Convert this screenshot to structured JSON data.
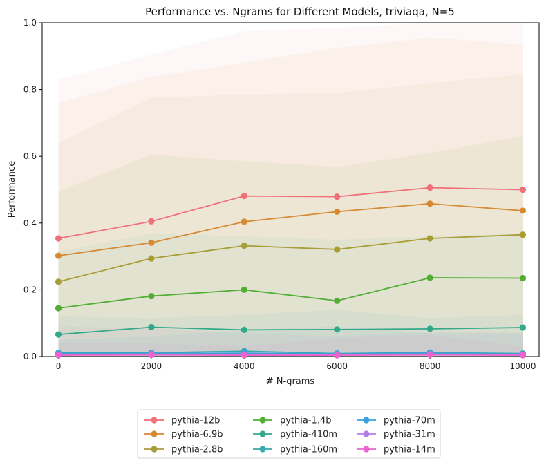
{
  "chart_data": {
    "type": "line",
    "title": "Performance vs. Ngrams for Different Models, triviaqa, N=5",
    "xlabel": "# N-grams",
    "ylabel": "Performance",
    "xlim": [
      -350,
      10350
    ],
    "ylim": [
      0,
      1.0
    ],
    "xticks": [
      0,
      2000,
      4000,
      6000,
      8000,
      10000
    ],
    "yticks": [
      0.0,
      0.2,
      0.4,
      0.6,
      0.8,
      1.0
    ],
    "xtick_labels": [
      "0",
      "2000",
      "4000",
      "6000",
      "8000",
      "10000"
    ],
    "ytick_labels": [
      "0.0",
      "0.2",
      "0.4",
      "0.6",
      "0.8",
      "1.0"
    ],
    "grid": false,
    "legend_placement": "below-center",
    "x": [
      0,
      2000,
      4000,
      6000,
      8000,
      10000
    ],
    "series": [
      {
        "name": "pythia-12b",
        "color": "#f0707a",
        "values": [
          0.354,
          0.405,
          0.481,
          0.479,
          0.506,
          0.5
        ],
        "band_low": [
          0.0,
          0.0,
          0.0,
          0.0,
          0.0,
          0.0
        ],
        "band_high": [
          0.83,
          0.905,
          0.975,
          0.985,
          1.0,
          1.0
        ]
      },
      {
        "name": "pythia-6.9b",
        "color": "#d68a34",
        "values": [
          0.302,
          0.341,
          0.404,
          0.434,
          0.458,
          0.437
        ],
        "band_low": [
          0.0,
          0.0,
          0.0,
          0.0,
          0.0,
          0.0
        ],
        "band_high": [
          0.76,
          0.838,
          0.88,
          0.925,
          0.955,
          0.935
        ]
      },
      {
        "name": "pythia-2.8b",
        "color": "#a89c34",
        "values": [
          0.224,
          0.294,
          0.332,
          0.321,
          0.354,
          0.365
        ],
        "band_low": [
          0.0,
          0.0,
          0.0,
          0.0,
          0.0,
          0.0
        ],
        "band_high": [
          0.64,
          0.775,
          0.785,
          0.79,
          0.82,
          0.845
        ]
      },
      {
        "name": "pythia-1.4b",
        "color": "#52ad35",
        "values": [
          0.145,
          0.181,
          0.2,
          0.167,
          0.236,
          0.235
        ],
        "band_low": [
          0.0,
          0.0,
          0.0,
          0.0,
          0.0,
          0.0
        ],
        "band_high": [
          0.495,
          0.605,
          0.585,
          0.568,
          0.61,
          0.66
        ]
      },
      {
        "name": "pythia-410m",
        "color": "#33a88a",
        "values": [
          0.066,
          0.088,
          0.08,
          0.081,
          0.083,
          0.087
        ],
        "band_low": [
          0.0,
          0.0,
          0.0,
          0.0,
          0.0,
          0.0
        ],
        "band_high": [
          0.315,
          0.37,
          0.36,
          0.35,
          0.36,
          0.37
        ]
      },
      {
        "name": "pythia-160m",
        "color": "#36aab0",
        "values": [
          0.011,
          0.011,
          0.016,
          0.009,
          0.012,
          0.009
        ],
        "band_low": [
          0.0,
          0.0,
          0.0,
          0.0,
          0.0,
          0.0
        ],
        "band_high": [
          0.12,
          0.115,
          0.125,
          0.14,
          0.115,
          0.125
        ]
      },
      {
        "name": "pythia-70m",
        "color": "#3aa1dc",
        "values": [
          0.009,
          0.009,
          0.01,
          0.008,
          0.01,
          0.008
        ],
        "band_low": [
          0.0,
          0.0,
          0.0,
          0.0,
          0.0,
          0.0
        ],
        "band_high": [
          0.05,
          0.06,
          0.08,
          0.09,
          0.07,
          0.07
        ]
      },
      {
        "name": "pythia-31m",
        "color": "#b57ce8",
        "values": [
          0.006,
          0.007,
          0.006,
          0.006,
          0.007,
          0.006
        ],
        "band_low": [
          0.0,
          0.0,
          0.0,
          0.0,
          0.0,
          0.0
        ],
        "band_high": [
          0.09,
          0.085,
          0.07,
          0.06,
          0.075,
          0.07
        ]
      },
      {
        "name": "pythia-14m",
        "color": "#ec64cf",
        "values": [
          0.004,
          0.005,
          0.004,
          0.004,
          0.005,
          0.004
        ],
        "band_low": [
          0.0,
          0.0,
          0.0,
          0.0,
          0.0,
          0.0
        ],
        "band_high": [
          0.04,
          0.04,
          0.03,
          0.055,
          0.065,
          0.03
        ]
      }
    ]
  }
}
